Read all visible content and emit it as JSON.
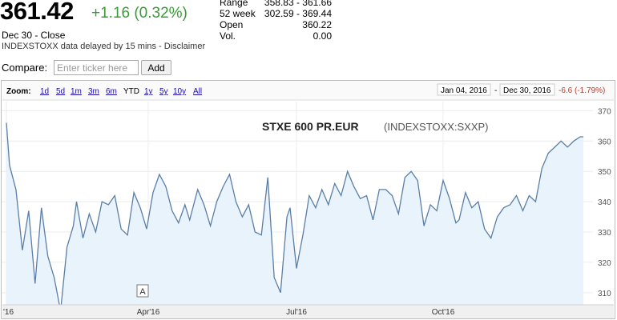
{
  "quote": {
    "price": "361.42",
    "change": "+1.16 (0.32%)",
    "date_close": "Dec 30 - Close",
    "delay_note": "INDEXSTOXX data delayed by 15 mins - Disclaimer",
    "change_color": "#3a9b36"
  },
  "stats": [
    {
      "label": "Range",
      "value": "358.83 - 361.66"
    },
    {
      "label": "52 week",
      "value": "302.59 - 369.44"
    },
    {
      "label": "Open",
      "value": "360.22"
    },
    {
      "label": "Vol.",
      "value": "0.00"
    }
  ],
  "compare": {
    "label": "Compare:",
    "placeholder": "Enter ticker here",
    "button": "Add"
  },
  "zoom": {
    "label": "Zoom:",
    "options": [
      "1d",
      "5d",
      "1m",
      "3m",
      "6m",
      "YTD",
      "1y",
      "5y",
      "10y",
      "All"
    ],
    "selected": "YTD"
  },
  "range_box": {
    "start": "Jan 04, 2016",
    "sep": "-",
    "end": "Dec 30, 2016",
    "change": "-6.6 (-1.79%)"
  },
  "annotation_marker": "A",
  "chart_data": {
    "type": "area",
    "title": "STXE 600 PR.EUR",
    "subtitle": "(INDEXSTOXX:SXXP)",
    "y_ticks": [
      310,
      320,
      330,
      340,
      350,
      360,
      370
    ],
    "ylim": [
      306,
      373
    ],
    "x_tick_labels": [
      "'16",
      "Apr'16",
      "Jul'16",
      "Oct'16"
    ],
    "x_tick_days": [
      0,
      89,
      182,
      274
    ],
    "xlim": [
      -3,
      368
    ],
    "line_color": "#5a7ea7",
    "fill_color": "#e9f3fb",
    "grid": true,
    "x": [
      0,
      2,
      6,
      10,
      14,
      18,
      22,
      26,
      30,
      34,
      38,
      42,
      44,
      48,
      52,
      56,
      60,
      64,
      68,
      72,
      76,
      80,
      84,
      88,
      92,
      96,
      100,
      104,
      108,
      112,
      115,
      120,
      124,
      128,
      132,
      136,
      140,
      144,
      148,
      152,
      156,
      160,
      164,
      168,
      172,
      176,
      178,
      182,
      186,
      190,
      194,
      198,
      202,
      206,
      210,
      214,
      218,
      222,
      226,
      230,
      234,
      238,
      242,
      246,
      250,
      254,
      258,
      262,
      266,
      270,
      274,
      278,
      282,
      284,
      288,
      292,
      296,
      300,
      304,
      308,
      312,
      316,
      320,
      324,
      328,
      332,
      336,
      340,
      344,
      348,
      352,
      356,
      360,
      362
    ],
    "y": [
      366,
      352,
      344,
      324,
      337,
      313,
      338,
      322,
      315,
      304,
      325,
      332,
      340,
      328,
      336,
      330,
      340,
      339,
      342,
      331,
      329,
      343,
      338,
      331,
      343,
      349,
      345,
      337,
      333,
      339,
      334,
      344,
      339,
      332,
      340,
      345,
      349,
      340,
      335,
      339,
      330,
      329,
      348,
      315,
      310,
      335,
      338,
      318,
      329,
      342,
      338,
      344,
      339,
      346,
      342,
      350,
      345,
      341,
      342,
      334,
      344,
      344,
      342,
      336,
      348,
      350,
      347,
      332,
      339,
      337,
      347,
      341,
      333,
      334,
      343,
      338,
      340,
      331,
      328,
      335,
      338,
      339,
      342,
      337,
      342,
      340,
      351,
      356,
      358,
      360,
      358,
      360,
      361.4,
      361.4
    ]
  }
}
